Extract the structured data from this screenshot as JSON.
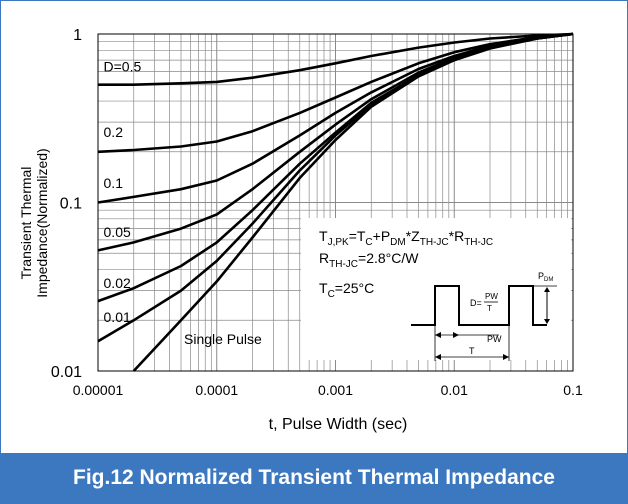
{
  "chart_data": {
    "type": "line",
    "xlabel": "t, Pulse Width (sec)",
    "ylabel_line1": "Transient Thermal",
    "ylabel_line2": "Impedance(Normalized)",
    "x_scale": "log",
    "y_scale": "log",
    "xlim": [
      1e-05,
      0.1
    ],
    "ylim": [
      0.01,
      1
    ],
    "grid": true,
    "x_ticks": [
      {
        "value": 1e-05,
        "label": "0.00001"
      },
      {
        "value": 0.0001,
        "label": "0.0001"
      },
      {
        "value": 0.001,
        "label": "0.001"
      },
      {
        "value": 0.01,
        "label": "0.01"
      },
      {
        "value": 0.1,
        "label": "0.1"
      }
    ],
    "y_ticks": [
      {
        "value": 0.01,
        "label": "0.01"
      },
      {
        "value": 0.1,
        "label": "0.1"
      },
      {
        "value": 1,
        "label": "1"
      }
    ],
    "x": [
      1e-05,
      2e-05,
      5e-05,
      0.0001,
      0.0002,
      0.0005,
      0.001,
      0.002,
      0.005,
      0.01,
      0.02,
      0.05,
      0.1
    ],
    "series": [
      {
        "name": "D=0.5",
        "label_x": 1.05e-05,
        "label_y": 0.6,
        "values": [
          0.5,
          0.5,
          0.51,
          0.52,
          0.55,
          0.61,
          0.67,
          0.74,
          0.83,
          0.89,
          0.94,
          0.98,
          1.0
        ]
      },
      {
        "name": "0.2",
        "label_x": 1.05e-05,
        "label_y": 0.245,
        "values": [
          0.2,
          0.205,
          0.215,
          0.23,
          0.265,
          0.34,
          0.42,
          0.52,
          0.67,
          0.78,
          0.87,
          0.96,
          1.0
        ]
      },
      {
        "name": "0.1",
        "label_x": 1.05e-05,
        "label_y": 0.122,
        "values": [
          0.1,
          0.108,
          0.12,
          0.135,
          0.17,
          0.25,
          0.34,
          0.45,
          0.62,
          0.74,
          0.85,
          0.95,
          1.0
        ]
      },
      {
        "name": "0.05",
        "label_x": 1.05e-05,
        "label_y": 0.0625,
        "values": [
          0.052,
          0.058,
          0.07,
          0.085,
          0.12,
          0.2,
          0.29,
          0.41,
          0.59,
          0.72,
          0.84,
          0.95,
          1.0
        ]
      },
      {
        "name": "0.02",
        "label_x": 1.05e-05,
        "label_y": 0.031,
        "values": [
          0.026,
          0.031,
          0.042,
          0.058,
          0.09,
          0.17,
          0.26,
          0.39,
          0.57,
          0.71,
          0.83,
          0.94,
          1.0
        ]
      },
      {
        "name": "0.01",
        "label_x": 1.05e-05,
        "label_y": 0.0195,
        "values": [
          0.015,
          0.02,
          0.03,
          0.045,
          0.075,
          0.155,
          0.25,
          0.38,
          0.565,
          0.7,
          0.83,
          0.94,
          1.0
        ]
      },
      {
        "name": "Single Pulse",
        "label_x": 5e-05,
        "label_y": 0.0145,
        "values": [
          0.006,
          0.01,
          0.02,
          0.034,
          0.062,
          0.14,
          0.235,
          0.37,
          0.56,
          0.7,
          0.82,
          0.94,
          1.0
        ]
      }
    ],
    "annotation": {
      "tj": "T",
      "tj_sub": "J,PK",
      "eq": "=T",
      "tc_sub": "C",
      "plus": "+P",
      "pdm_sub": "DM",
      "star1": "*Z",
      "z_sub": "TH-JC",
      "star2": "*R",
      "r_sub": "TH-JC",
      "r_line": "R",
      "r_line_sub": "TH-JC",
      "r_line_val": "=2.8°C/W",
      "tc_line": "T",
      "tc_line_sub": "C",
      "tc_line_val": "=25°C"
    },
    "pulse_diagram": {
      "pdm": "P",
      "pdm_sub": "DM",
      "duty_d": "D=",
      "duty_num": "PW",
      "duty_den": "T",
      "pw": "PW",
      "t": "T"
    }
  },
  "caption": "Fig.12 Normalized Transient Thermal Impedance"
}
